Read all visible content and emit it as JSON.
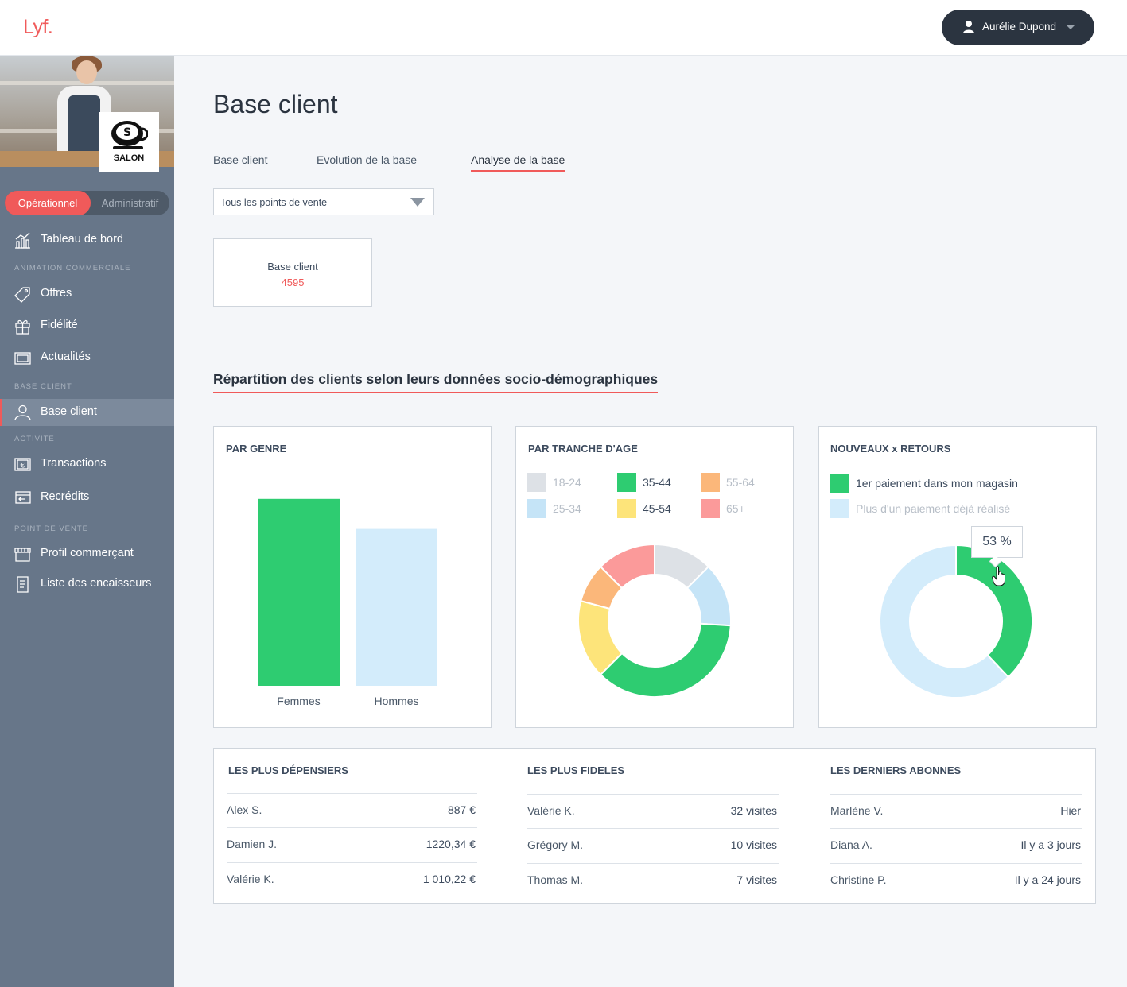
{
  "app": {
    "logo": "Lyf."
  },
  "header": {
    "user_name": "Aurélie Dupond"
  },
  "sidebar": {
    "store_logo_text": "SALON",
    "toggle": {
      "active": "Opérationnel",
      "inactive": "Administratif"
    },
    "sections": {
      "animation": "ANIMATION COMMERCIALE",
      "base": "BASE CLIENT",
      "activite": "ACTIVITÉ",
      "pdv": "POINT DE VENTE"
    },
    "items": [
      {
        "label": "Tableau de bord",
        "icon": "chart-icon"
      },
      {
        "label": "Offres",
        "icon": "tag-icon"
      },
      {
        "label": "Fidélité",
        "icon": "gift-icon"
      },
      {
        "label": "Actualités",
        "icon": "news-icon"
      },
      {
        "label": "Base client",
        "icon": "user-icon"
      },
      {
        "label": "Transactions",
        "icon": "euro-icon"
      },
      {
        "label": "Recrédits",
        "icon": "refund-icon"
      },
      {
        "label": "Profil commerçant",
        "icon": "store-icon"
      },
      {
        "label": "Liste des encaisseurs",
        "icon": "list-icon"
      }
    ]
  },
  "main": {
    "title": "Base client",
    "tabs": [
      {
        "label": "Base client"
      },
      {
        "label": "Evolution de la base"
      },
      {
        "label": "Analyse de la base"
      }
    ],
    "filter": {
      "value": "Tous les points de vente"
    },
    "kpi": {
      "label": "Base client",
      "value": "4595"
    },
    "section_title": "Répartition des clients selon leurs données socio-démographiques"
  },
  "chart_data": [
    {
      "type": "bar",
      "title": "PAR GENRE",
      "categories": [
        "Femmes",
        "Hommes"
      ],
      "values": [
        56,
        47
      ],
      "ylim": [
        0,
        60
      ],
      "colors": [
        "#2ecc71",
        "#d3ecfb"
      ]
    },
    {
      "type": "pie",
      "title": "PAR TRANCHE D'AGE",
      "categories": [
        "18-24",
        "25-34",
        "35-44",
        "45-54",
        "55-64",
        "65+"
      ],
      "values": [
        12,
        13,
        35,
        16,
        8,
        12
      ],
      "colors": [
        "#dde1e6",
        "#c5e4f7",
        "#2ecc71",
        "#fde47a",
        "#fbb77a",
        "#fb9a9a"
      ]
    },
    {
      "type": "pie",
      "title": "NOUVEAUX x RETOURS",
      "categories": [
        "1er paiement dans mon magasin",
        "Plus d'un paiement déjà réalisé"
      ],
      "values": [
        38,
        62
      ],
      "colors": [
        "#2ecc71",
        "#d3ecfb"
      ],
      "tooltip": "53 %"
    }
  ],
  "lists": [
    {
      "title": "LES PLUS DÉPENSIERS",
      "rows": [
        {
          "name": "Alex S.",
          "value": "887 €"
        },
        {
          "name": "Damien J.",
          "value": "1220,34 €"
        },
        {
          "name": "Valérie K.",
          "value": "1 010,22 €"
        }
      ]
    },
    {
      "title": "LES PLUS FIDELES",
      "rows": [
        {
          "name": "Valérie K.",
          "value": "32 visites"
        },
        {
          "name": "Grégory M.",
          "value": "10 visites"
        },
        {
          "name": "Thomas M.",
          "value": "7 visites"
        }
      ]
    },
    {
      "title": "LES DERNIERS ABONNES",
      "rows": [
        {
          "name": "Marlène  V.",
          "value": "Hier"
        },
        {
          "name": "Diana A.",
          "value": "Il y a 3 jours"
        },
        {
          "name": "Christine P.",
          "value": "Il y a 24 jours"
        }
      ]
    }
  ]
}
